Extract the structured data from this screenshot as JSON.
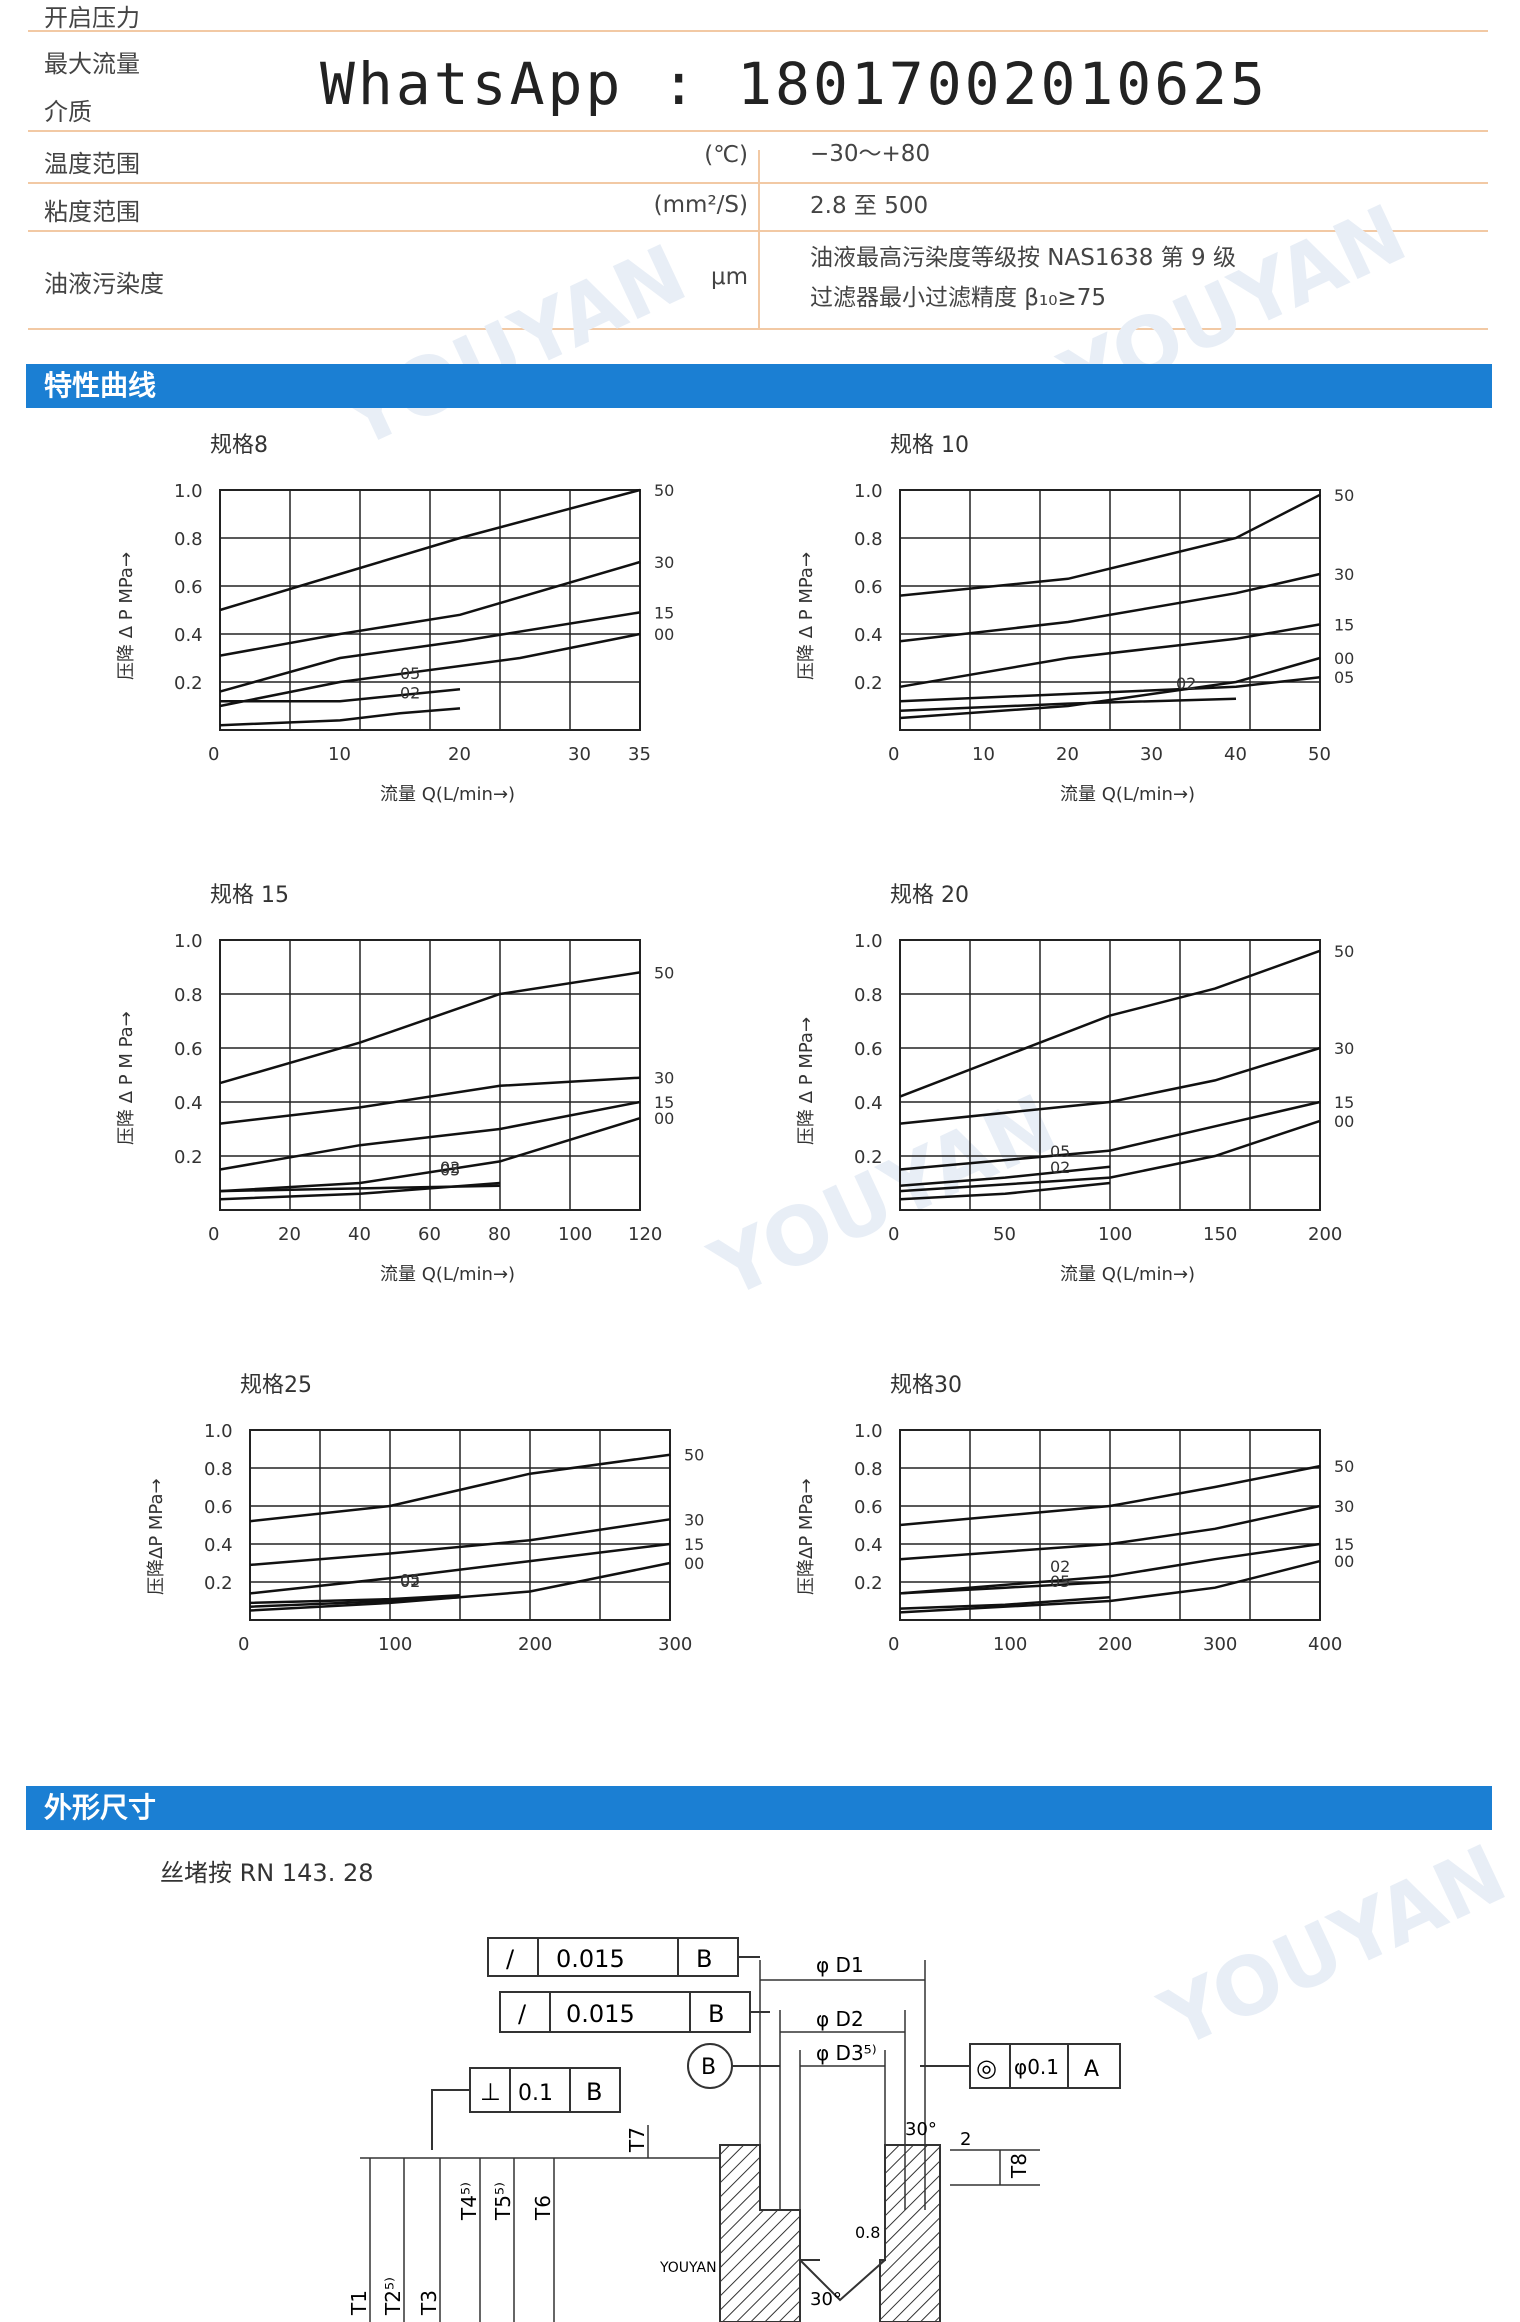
{
  "spec_table": {
    "rows": [
      {
        "label": "开启压力",
        "unit": "",
        "value": ""
      },
      {
        "label": "最大流量",
        "unit": "",
        "value": ""
      },
      {
        "label": "介质",
        "unit": "",
        "value": ""
      },
      {
        "label": "温度范围",
        "unit": "(℃)",
        "value": "−30～+80"
      },
      {
        "label": "粘度范围",
        "unit": "(mm²/S)",
        "value": "2.8 至 500"
      },
      {
        "label": "油液污染度",
        "unit": "μm",
        "value": "油液最高污染度等级按 NAS1638 第 9 级",
        "value2": "过滤器最小过滤精度 β₁₀≥75"
      }
    ],
    "overlay_text": "WhatsApp : 18017002010625"
  },
  "section_curves": {
    "title": "特性曲线"
  },
  "section_dims": {
    "title": "外形尺寸",
    "thread_note": "丝堵按 RN 143. 28"
  },
  "watermark": "YOUYAN",
  "charts": [
    {
      "title": "规格8",
      "ylabel": "压降 Δ P MPa→",
      "xlabel": "流量 Q(L/min→)",
      "xticks": [
        "0",
        "10",
        "20",
        "30",
        "35"
      ],
      "xmax": 35,
      "yticks": [
        "0.2",
        "0.4",
        "0.6",
        "0.8",
        "1.0"
      ],
      "series": [
        {
          "name": "50",
          "points": [
            [
              0,
              0.5
            ],
            [
              10,
              0.65
            ],
            [
              20,
              0.8
            ],
            [
              35,
              1.0
            ]
          ]
        },
        {
          "name": "30",
          "points": [
            [
              0,
              0.31
            ],
            [
              10,
              0.4
            ],
            [
              20,
              0.48
            ],
            [
              35,
              0.7
            ]
          ]
        },
        {
          "name": "15",
          "points": [
            [
              0,
              0.16
            ],
            [
              10,
              0.3
            ],
            [
              20,
              0.37
            ],
            [
              35,
              0.49
            ]
          ]
        },
        {
          "name": "00",
          "points": [
            [
              0,
              0.1
            ],
            [
              10,
              0.2
            ],
            [
              25,
              0.3
            ],
            [
              35,
              0.4
            ]
          ]
        },
        {
          "name": "05",
          "points": [
            [
              0,
              0.12
            ],
            [
              5,
              0.12
            ],
            [
              10,
              0.12
            ],
            [
              20,
              0.17
            ]
          ]
        },
        {
          "name": "02",
          "points": [
            [
              0,
              0.02
            ],
            [
              10,
              0.04
            ],
            [
              15,
              0.07
            ],
            [
              20,
              0.09
            ]
          ]
        }
      ]
    },
    {
      "title": "规格 10",
      "ylabel": "压降 Δ P MPa→",
      "xlabel": "流量 Q(L/min→)",
      "xticks": [
        "0",
        "10",
        "20",
        "30",
        "40",
        "50"
      ],
      "xmax": 50,
      "yticks": [
        "0.2",
        "0.4",
        "0.6",
        "0.8",
        "1.0"
      ],
      "series": [
        {
          "name": "50",
          "points": [
            [
              0,
              0.56
            ],
            [
              20,
              0.63
            ],
            [
              40,
              0.8
            ],
            [
              50,
              0.98
            ]
          ]
        },
        {
          "name": "30",
          "points": [
            [
              0,
              0.37
            ],
            [
              20,
              0.45
            ],
            [
              40,
              0.57
            ],
            [
              50,
              0.65
            ]
          ]
        },
        {
          "name": "15",
          "points": [
            [
              0,
              0.18
            ],
            [
              20,
              0.3
            ],
            [
              40,
              0.38
            ],
            [
              50,
              0.44
            ]
          ]
        },
        {
          "name": "00",
          "points": [
            [
              0,
              0.05
            ],
            [
              20,
              0.1
            ],
            [
              40,
              0.2
            ],
            [
              50,
              0.3
            ]
          ]
        },
        {
          "name": "05",
          "points": [
            [
              0,
              0.12
            ],
            [
              20,
              0.15
            ],
            [
              40,
              0.18
            ],
            [
              50,
              0.22
            ]
          ]
        },
        {
          "name": "02",
          "points": [
            [
              0,
              0.08
            ],
            [
              20,
              0.11
            ],
            [
              40,
              0.13
            ]
          ]
        }
      ]
    },
    {
      "title": "规格 15",
      "ylabel": "压降 Δ P M Pa→",
      "xlabel": "流量 Q(L/min→)",
      "xticks": [
        "0",
        "20",
        "40",
        "60",
        "80",
        "100",
        "120"
      ],
      "xmax": 120,
      "yticks": [
        "0.2",
        "0.4",
        "0.6",
        "0.8",
        "1.0"
      ],
      "series": [
        {
          "name": "50",
          "points": [
            [
              0,
              0.47
            ],
            [
              40,
              0.62
            ],
            [
              80,
              0.8
            ],
            [
              120,
              0.88
            ]
          ]
        },
        {
          "name": "30",
          "points": [
            [
              0,
              0.32
            ],
            [
              40,
              0.38
            ],
            [
              80,
              0.46
            ],
            [
              120,
              0.49
            ]
          ]
        },
        {
          "name": "15",
          "points": [
            [
              0,
              0.15
            ],
            [
              40,
              0.24
            ],
            [
              80,
              0.3
            ],
            [
              120,
              0.4
            ]
          ]
        },
        {
          "name": "00",
          "points": [
            [
              0,
              0.07
            ],
            [
              40,
              0.1
            ],
            [
              80,
              0.18
            ],
            [
              120,
              0.34
            ]
          ]
        },
        {
          "name": "05",
          "points": [
            [
              0,
              0.07
            ],
            [
              40,
              0.08
            ],
            [
              80,
              0.09
            ]
          ]
        },
        {
          "name": "02",
          "points": [
            [
              0,
              0.04
            ],
            [
              40,
              0.06
            ],
            [
              80,
              0.1
            ]
          ]
        }
      ]
    },
    {
      "title": "规格 20",
      "ylabel": "压降 Δ P MPa→",
      "xlabel": "流量 Q(L/min→)",
      "xticks": [
        "0",
        "50",
        "100",
        "150",
        "200"
      ],
      "xmax": 200,
      "yticks": [
        "0.2",
        "0.4",
        "0.6",
        "0.8",
        "1.0"
      ],
      "series": [
        {
          "name": "50",
          "points": [
            [
              0,
              0.42
            ],
            [
              100,
              0.72
            ],
            [
              150,
              0.82
            ],
            [
              200,
              0.96
            ]
          ]
        },
        {
          "name": "30",
          "points": [
            [
              0,
              0.32
            ],
            [
              100,
              0.4
            ],
            [
              150,
              0.48
            ],
            [
              200,
              0.6
            ]
          ]
        },
        {
          "name": "15",
          "points": [
            [
              0,
              0.15
            ],
            [
              100,
              0.22
            ],
            [
              150,
              0.31
            ],
            [
              200,
              0.4
            ]
          ]
        },
        {
          "name": "00",
          "points": [
            [
              0,
              0.07
            ],
            [
              100,
              0.12
            ],
            [
              150,
              0.2
            ],
            [
              200,
              0.33
            ]
          ]
        },
        {
          "name": "05",
          "points": [
            [
              0,
              0.09
            ],
            [
              50,
              0.12
            ],
            [
              100,
              0.16
            ]
          ]
        },
        {
          "name": "02",
          "points": [
            [
              0,
              0.04
            ],
            [
              50,
              0.06
            ],
            [
              100,
              0.1
            ]
          ]
        }
      ]
    },
    {
      "title": "规格25",
      "ylabel": "压降ΔP MPa→",
      "xlabel": "",
      "xticks": [
        "0",
        "100",
        "200",
        "300"
      ],
      "xmax": 300,
      "yticks": [
        "0.2",
        "0.4",
        "0.6",
        "0.8",
        "1.0"
      ],
      "series": [
        {
          "name": "50",
          "points": [
            [
              0,
              0.52
            ],
            [
              100,
              0.6
            ],
            [
              200,
              0.77
            ],
            [
              300,
              0.87
            ]
          ]
        },
        {
          "name": "30",
          "points": [
            [
              0,
              0.29
            ],
            [
              100,
              0.35
            ],
            [
              200,
              0.42
            ],
            [
              300,
              0.53
            ]
          ]
        },
        {
          "name": "15",
          "points": [
            [
              0,
              0.14
            ],
            [
              100,
              0.22
            ],
            [
              200,
              0.31
            ],
            [
              300,
              0.4
            ]
          ]
        },
        {
          "name": "00",
          "points": [
            [
              0,
              0.05
            ],
            [
              100,
              0.09
            ],
            [
              200,
              0.15
            ],
            [
              300,
              0.3
            ]
          ]
        },
        {
          "name": "02",
          "points": [
            [
              0,
              0.07
            ],
            [
              100,
              0.1
            ],
            [
              150,
              0.12
            ]
          ]
        },
        {
          "name": "05",
          "points": [
            [
              0,
              0.09
            ],
            [
              100,
              0.11
            ],
            [
              150,
              0.13
            ]
          ]
        }
      ]
    },
    {
      "title": "规格30",
      "ylabel": "压降ΔP MPa→",
      "xlabel": "",
      "xticks": [
        "0",
        "100",
        "200",
        "300",
        "400"
      ],
      "xmax": 400,
      "yticks": [
        "0.2",
        "0.4",
        "0.6",
        "0.8",
        "1.0"
      ],
      "series": [
        {
          "name": "50",
          "points": [
            [
              0,
              0.5
            ],
            [
              200,
              0.6
            ],
            [
              300,
              0.7
            ],
            [
              400,
              0.81
            ]
          ]
        },
        {
          "name": "30",
          "points": [
            [
              0,
              0.32
            ],
            [
              200,
              0.4
            ],
            [
              300,
              0.48
            ],
            [
              400,
              0.6
            ]
          ]
        },
        {
          "name": "15",
          "points": [
            [
              0,
              0.14
            ],
            [
              200,
              0.23
            ],
            [
              300,
              0.32
            ],
            [
              400,
              0.4
            ]
          ]
        },
        {
          "name": "00",
          "points": [
            [
              0,
              0.04
            ],
            [
              200,
              0.1
            ],
            [
              300,
              0.17
            ],
            [
              400,
              0.31
            ]
          ]
        },
        {
          "name": "02",
          "points": [
            [
              0,
              0.14
            ],
            [
              100,
              0.17
            ],
            [
              200,
              0.2
            ]
          ]
        },
        {
          "name": "05",
          "points": [
            [
              0,
              0.06
            ],
            [
              100,
              0.08
            ],
            [
              200,
              0.12
            ]
          ]
        }
      ]
    }
  ],
  "drawing": {
    "frames": [
      [
        "/",
        "0.015",
        "B"
      ],
      [
        "/",
        "0.015",
        "B"
      ],
      [
        "⊥",
        "0.1",
        "B"
      ],
      [
        "◎",
        "φ0.1",
        "A"
      ]
    ],
    "dims": [
      "φ D1",
      "φ D2",
      "φ D3⁵⁾"
    ],
    "datum": "B",
    "vlabels": [
      "T1",
      "T2⁵⁾",
      "T3",
      "T4⁵⁾",
      "T5⁵⁾",
      "T6",
      "T7",
      "T8"
    ],
    "angles": [
      "30°",
      "30°"
    ],
    "misc": [
      "2",
      "0.8",
      "YOUYAN"
    ]
  }
}
